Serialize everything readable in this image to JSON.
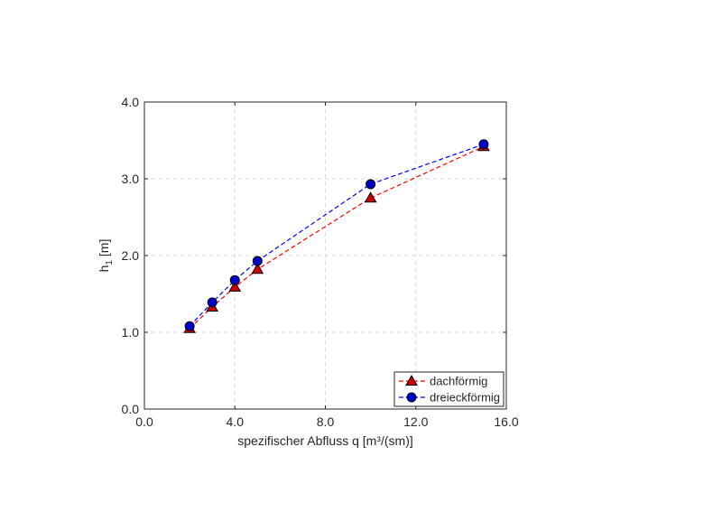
{
  "chart_data": {
    "type": "line",
    "title": "",
    "xlabel": "spezifischer Abfluss q [m³/(sm)]",
    "ylabel_main": "h",
    "ylabel_sub": "1",
    "ylabel_unit": " [m]",
    "xlim": [
      0,
      16
    ],
    "ylim": [
      0,
      4
    ],
    "xticks": [
      0,
      4,
      8,
      12,
      16
    ],
    "xtick_labels": [
      "0.0",
      "4.0",
      "8.0",
      "12.0",
      "16.0"
    ],
    "yticks": [
      0,
      1,
      2,
      3,
      4
    ],
    "ytick_labels": [
      "0.0",
      "1.0",
      "2.0",
      "3.0",
      "4.0"
    ],
    "grid": true,
    "legend_position": "bottom-right",
    "series": [
      {
        "name": "dachförmig",
        "marker": "triangle",
        "line_color": "#ff0000",
        "marker_fill": "#cc0000",
        "x": [
          2,
          3,
          4,
          5,
          10,
          15
        ],
        "y": [
          1.05,
          1.33,
          1.59,
          1.82,
          2.75,
          3.42
        ]
      },
      {
        "name": "dreieckförmig",
        "marker": "circle",
        "line_color": "#0000ff",
        "marker_fill": "#0000cc",
        "x": [
          2,
          3,
          4,
          5,
          10,
          15
        ],
        "y": [
          1.08,
          1.39,
          1.68,
          1.93,
          2.93,
          3.45
        ]
      }
    ]
  }
}
